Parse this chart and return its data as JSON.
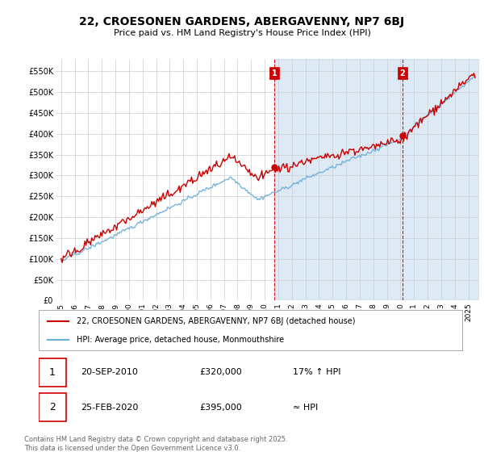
{
  "title": "22, CROESONEN GARDENS, ABERGAVENNY, NP7 6BJ",
  "subtitle": "Price paid vs. HM Land Registry's House Price Index (HPI)",
  "ylabel_ticks": [
    "£0",
    "£50K",
    "£100K",
    "£150K",
    "£200K",
    "£250K",
    "£300K",
    "£350K",
    "£400K",
    "£450K",
    "£500K",
    "£550K"
  ],
  "ylim": [
    0,
    580000
  ],
  "ytick_vals": [
    0,
    50000,
    100000,
    150000,
    200000,
    250000,
    300000,
    350000,
    400000,
    450000,
    500000,
    550000
  ],
  "hpi_color": "#6baed6",
  "price_color": "#cc0000",
  "vline_color": "#cc0000",
  "shade_color": "#ddeeff",
  "background_color": "#ffffff",
  "plot_bg": "#ffffff",
  "grid_color": "#cccccc",
  "annotation1_date": "20-SEP-2010",
  "annotation1_price": "£320,000",
  "annotation1_hpi": "17% ↑ HPI",
  "annotation2_date": "25-FEB-2020",
  "annotation2_price": "£395,000",
  "annotation2_hpi": "≈ HPI",
  "vline1_x": 2010.72,
  "vline2_x": 2020.15,
  "sale1_y": 320000,
  "sale2_y": 395000,
  "footer": "Contains HM Land Registry data © Crown copyright and database right 2025.\nThis data is licensed under the Open Government Licence v3.0.",
  "legend_line1": "22, CROESONEN GARDENS, ABERGAVENNY, NP7 6BJ (detached house)",
  "legend_line2": "HPI: Average price, detached house, Monmouthshire",
  "xlim_left": 1994.6,
  "xlim_right": 2025.8
}
